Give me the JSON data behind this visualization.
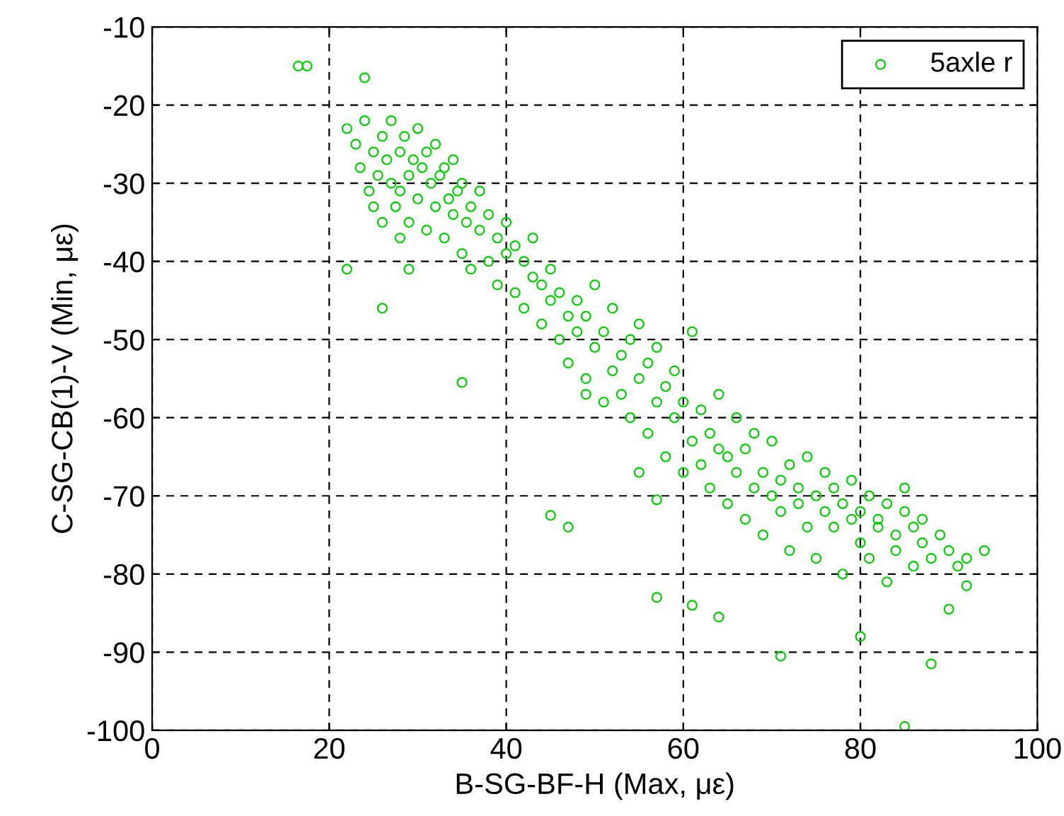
{
  "chart_data": {
    "type": "scatter",
    "xlabel": "B-SG-BF-H (Max, με)",
    "ylabel": "C-SG-CB(1)-V (Min, με)",
    "xlim": [
      0,
      100
    ],
    "ylim": [
      -100,
      -10
    ],
    "xticks": [
      0,
      20,
      40,
      60,
      80,
      100
    ],
    "yticks": [
      -100,
      -90,
      -80,
      -70,
      -60,
      -50,
      -40,
      -30,
      -20,
      -10
    ],
    "grid": true,
    "legend": "top right",
    "marker": "circle",
    "series": [
      {
        "name": "5axle r",
        "color": "#00cc00",
        "x": [
          16.5,
          17.5,
          24,
          22,
          23,
          23.5,
          24,
          24.5,
          25,
          25,
          25.5,
          26,
          26,
          26.5,
          27,
          27,
          27.5,
          28,
          28,
          28.5,
          29,
          29,
          29.5,
          30,
          30,
          30.5,
          31,
          31,
          31.5,
          32,
          32,
          32.5,
          33,
          33,
          33.5,
          34,
          34,
          34.5,
          35,
          35,
          35.5,
          36,
          36,
          37,
          37,
          38,
          38,
          39,
          39,
          40,
          40,
          41,
          41,
          42,
          42,
          43,
          43,
          44,
          44,
          45,
          45,
          46,
          46,
          47,
          47,
          48,
          48,
          49,
          49,
          50,
          50,
          51,
          51,
          52,
          52,
          53,
          53,
          54,
          54,
          55,
          55,
          56,
          56,
          57,
          57,
          58,
          58,
          59,
          59,
          60,
          60,
          61,
          61,
          62,
          62,
          63,
          63,
          64,
          64,
          65,
          65,
          66,
          66,
          67,
          67,
          68,
          68,
          69,
          69,
          70,
          70,
          71,
          71,
          72,
          72,
          73,
          73,
          74,
          74,
          75,
          75,
          76,
          76,
          77,
          77,
          78,
          78,
          79,
          79,
          80,
          80,
          81,
          81,
          82,
          82,
          83,
          83,
          84,
          84,
          85,
          85,
          86,
          86,
          87,
          87,
          88,
          89,
          90,
          91,
          92,
          94,
          22,
          26,
          35,
          45,
          47,
          57,
          61,
          64,
          71,
          80,
          88,
          85,
          90,
          92,
          49,
          55,
          57,
          29,
          28
        ],
        "values": [
          -15,
          -15,
          -16.5,
          -23,
          -25,
          -28,
          -22,
          -31,
          -26,
          -33,
          -29,
          -24,
          -35,
          -27,
          -30,
          -22,
          -33,
          -26,
          -31,
          -24,
          -29,
          -35,
          -27,
          -23,
          -32,
          -28,
          -36,
          -26,
          -30,
          -33,
          -25,
          -29,
          -37,
          -28,
          -32,
          -34,
          -27,
          -31,
          -39,
          -30,
          -35,
          -33,
          -41,
          -36,
          -31,
          -34,
          -40,
          -43,
          -37,
          -39,
          -35,
          -44,
          -38,
          -46,
          -40,
          -42,
          -37,
          -48,
          -43,
          -45,
          -41,
          -50,
          -44,
          -47,
          -53,
          -45,
          -49,
          -55,
          -47,
          -51,
          -43,
          -58,
          -49,
          -54,
          -46,
          -52,
          -57,
          -50,
          -60,
          -55,
          -48,
          -62,
          -53,
          -58,
          -51,
          -65,
          -56,
          -60,
          -54,
          -67,
          -58,
          -49,
          -63,
          -66,
          -59,
          -69,
          -62,
          -64,
          -57,
          -71,
          -65,
          -67,
          -60,
          -73,
          -64,
          -69,
          -62,
          -75,
          -67,
          -70,
          -63,
          -72,
          -68,
          -77,
          -66,
          -71,
          -69,
          -65,
          -74,
          -70,
          -78,
          -67,
          -72,
          -74,
          -69,
          -80,
          -71,
          -73,
          -68,
          -76,
          -72,
          -70,
          -78,
          -74,
          -73,
          -81,
          -71,
          -75,
          -77,
          -72,
          -69,
          -79,
          -74,
          -76,
          -73,
          -78,
          -75,
          -77,
          -79,
          -78,
          -77,
          -41,
          -46,
          -55.5,
          -72.5,
          -74,
          -83,
          -84,
          -85.5,
          -90.5,
          -88,
          -91.5,
          -99.5,
          -84.5,
          -81.5,
          -57,
          -67,
          -70.5,
          -41,
          -37
        ]
      }
    ]
  }
}
